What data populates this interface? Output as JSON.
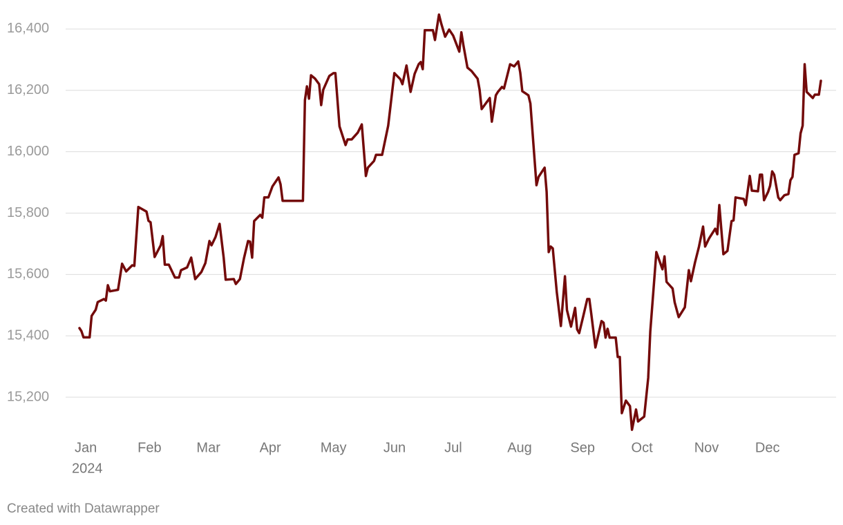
{
  "chart_data": {
    "type": "line",
    "color": "#730a0a",
    "grid": true,
    "year_label": "2024",
    "credit": "Created with Datawrapper",
    "xlim": [
      -6,
      373
    ],
    "xticks": [
      {
        "value": 0,
        "label": "Jan"
      },
      {
        "value": 31,
        "label": "Feb"
      },
      {
        "value": 60,
        "label": "Mar"
      },
      {
        "value": 91,
        "label": "Apr"
      },
      {
        "value": 121,
        "label": "May"
      },
      {
        "value": 152,
        "label": "Jun"
      },
      {
        "value": 182,
        "label": "Jul"
      },
      {
        "value": 213,
        "label": "Aug"
      },
      {
        "value": 244,
        "label": "Sep"
      },
      {
        "value": 274,
        "label": "Oct"
      },
      {
        "value": 305,
        "label": "Nov"
      },
      {
        "value": 335,
        "label": "Dec"
      }
    ],
    "ylim": [
      15080,
      16460
    ],
    "yticks": [
      {
        "value": 15200,
        "label": "15,200"
      },
      {
        "value": 15400,
        "label": "15,400"
      },
      {
        "value": 15600,
        "label": "15,600"
      },
      {
        "value": 15800,
        "label": "15,800"
      },
      {
        "value": 16000,
        "label": "16,000"
      },
      {
        "value": 16200,
        "label": "16,200"
      },
      {
        "value": 16400,
        "label": "16,400"
      }
    ],
    "x": [
      1,
      2,
      3,
      6,
      7,
      9,
      10,
      13,
      14,
      15,
      16,
      20,
      22,
      24,
      27,
      28,
      30,
      34,
      35,
      36,
      38,
      41,
      42,
      43,
      45,
      48,
      50,
      51,
      54,
      56,
      58,
      61,
      63,
      65,
      66,
      68,
      70,
      72,
      73,
      77,
      78,
      80,
      82,
      84,
      85,
      86,
      87,
      90,
      91,
      92,
      94,
      96,
      99,
      100,
      101,
      111,
      112,
      113,
      114,
      115,
      117,
      119,
      120,
      121,
      124,
      126,
      127,
      129,
      132,
      133,
      135,
      138,
      140,
      142,
      143,
      146,
      147,
      150,
      153,
      156,
      159,
      160,
      162,
      164,
      166,
      168,
      169,
      170,
      171,
      175,
      176,
      178,
      179,
      181,
      183,
      185,
      188,
      189,
      190,
      192,
      194,
      197,
      198,
      199,
      201,
      203,
      204,
      206,
      207,
      209,
      210,
      213,
      215,
      217,
      218,
      219,
      222,
      223,
      226,
      227,
      230,
      231,
      232,
      233,
      234,
      236,
      238,
      240,
      241,
      243,
      245,
      246,
      247,
      249,
      251,
      252,
      253,
      255,
      258,
      259,
      260,
      261,
      262,
      265,
      266,
      267,
      268,
      270,
      272,
      273,
      275,
      276,
      279,
      281,
      282,
      285,
      288,
      289,
      290,
      293,
      294,
      296,
      299,
      301,
      302,
      304,
      306,
      308,
      309,
      311,
      314,
      315,
      316,
      318,
      320,
      322,
      323,
      324,
      328,
      329,
      331,
      332,
      335,
      336,
      337,
      338,
      340,
      341,
      342,
      343,
      345,
      346,
      348,
      350,
      351,
      352,
      353,
      355,
      356,
      357,
      358,
      359,
      362,
      363,
      365,
      366
    ],
    "values": [
      15425,
      15415,
      15395,
      15395,
      15465,
      15485,
      15510,
      15520,
      15515,
      15565,
      15545,
      15550,
      15635,
      15610,
      15630,
      15628,
      15820,
      15805,
      15775,
      15770,
      15657,
      15695,
      15725,
      15632,
      15632,
      15590,
      15590,
      15614,
      15623,
      15655,
      15585,
      15608,
      15637,
      15709,
      15695,
      15722,
      15765,
      15655,
      15583,
      15585,
      15569,
      15585,
      15653,
      15709,
      15707,
      15655,
      15774,
      15794,
      15785,
      15851,
      15851,
      15887,
      15916,
      15894,
      15840,
      15840,
      16168,
      16213,
      16173,
      16249,
      16238,
      16220,
      16152,
      16202,
      16247,
      16256,
      16256,
      16083,
      16022,
      16040,
      16040,
      16062,
      16089,
      15921,
      15948,
      15970,
      15990,
      15990,
      16085,
      16256,
      16236,
      16220,
      16281,
      16195,
      16254,
      16285,
      16292,
      16269,
      16396,
      16396,
      16364,
      16447,
      16420,
      16375,
      16398,
      16378,
      16326,
      16389,
      16348,
      16274,
      16263,
      16238,
      16202,
      16139,
      16157,
      16175,
      16098,
      16184,
      16195,
      16211,
      16206,
      16285,
      16278,
      16294,
      16258,
      16197,
      16184,
      16157,
      15891,
      15918,
      15948,
      15869,
      15673,
      15691,
      15685,
      15542,
      15432,
      15594,
      15484,
      15430,
      15491,
      15421,
      15409,
      15464,
      15520,
      15520,
      15470,
      15362,
      15448,
      15443,
      15394,
      15423,
      15394,
      15394,
      15331,
      15331,
      15148,
      15189,
      15171,
      15094,
      15160,
      15121,
      15137,
      15263,
      15414,
      15673,
      15617,
      15659,
      15576,
      15554,
      15509,
      15461,
      15493,
      15614,
      15578,
      15639,
      15691,
      15756,
      15691,
      15718,
      15749,
      15731,
      15826,
      15666,
      15677,
      15774,
      15776,
      15851,
      15846,
      15826,
      15921,
      15873,
      15871,
      15925,
      15925,
      15842,
      15869,
      15889,
      15936,
      15925,
      15851,
      15842,
      15858,
      15862,
      15907,
      15918,
      15990,
      15995,
      16060,
      16085,
      16285,
      16195,
      16175,
      16186,
      16186,
      16231
    ]
  }
}
